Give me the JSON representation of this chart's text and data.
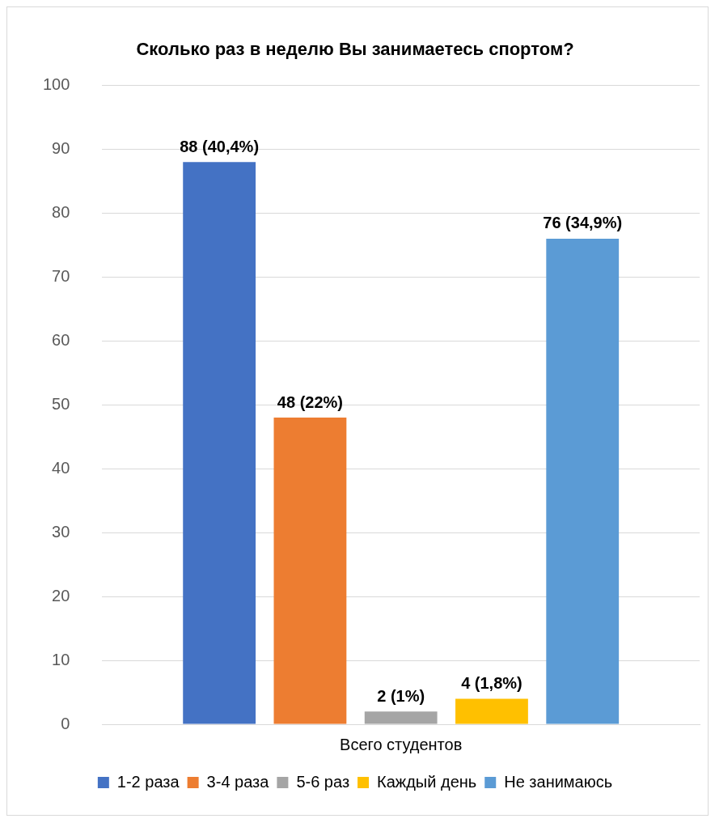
{
  "chart_data": {
    "type": "bar",
    "title": "Сколько раз в неделю Вы занимаетесь спортом?",
    "categories": [
      "Всего студентов"
    ],
    "series": [
      {
        "name": "1-2 раза",
        "color": "#4472c4",
        "values": [
          88
        ],
        "value_labels": [
          "88 (40,4%)"
        ]
      },
      {
        "name": "3-4 раза",
        "color": "#ed7d31",
        "values": [
          48
        ],
        "value_labels": [
          "48 (22%)"
        ]
      },
      {
        "name": "5-6 раз",
        "color": "#a5a5a5",
        "values": [
          2
        ],
        "value_labels": [
          "2 (1%)"
        ]
      },
      {
        "name": "Каждый день",
        "color": "#ffc000",
        "values": [
          4
        ],
        "value_labels": [
          "4 (1,8%)"
        ]
      },
      {
        "name": "Не занимаюсь",
        "color": "#5b9bd5",
        "values": [
          76
        ],
        "value_labels": [
          "76 (34,9%)"
        ]
      }
    ],
    "ylim": [
      0,
      100
    ],
    "yticks": [
      0,
      10,
      20,
      30,
      40,
      50,
      60,
      70,
      80,
      90,
      100
    ],
    "grid": "y",
    "legend": "bottom"
  }
}
